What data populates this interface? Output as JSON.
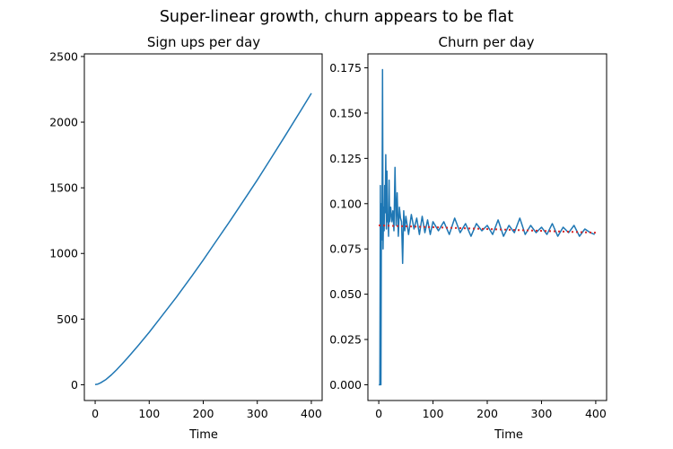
{
  "figure": {
    "suptitle": "Super-linear growth, churn appears to be flat"
  },
  "colors": {
    "series": "#1f77b4",
    "trend": "#d62728",
    "axes": "#000000"
  },
  "chart_data": [
    {
      "type": "line",
      "title": "Sign ups per day",
      "xlabel": "Time",
      "ylabel": "",
      "xlim": [
        -20,
        420
      ],
      "ylim": [
        -120,
        2520
      ],
      "xticks": [
        0,
        100,
        200,
        300,
        400
      ],
      "yticks": [
        0,
        500,
        1000,
        1500,
        2000,
        2500
      ],
      "grid": false,
      "series": [
        {
          "color": "#1f77b4",
          "x": [
            0,
            5,
            10,
            20,
            30,
            40,
            50,
            60,
            80,
            100,
            120,
            150,
            180,
            200,
            220,
            250,
            280,
            300,
            320,
            350,
            380,
            400
          ],
          "y": [
            2,
            5,
            15,
            40,
            75,
            115,
            160,
            205,
            300,
            400,
            505,
            665,
            835,
            950,
            1070,
            1250,
            1435,
            1560,
            1690,
            1885,
            2085,
            2220
          ]
        }
      ]
    },
    {
      "type": "line",
      "title": "Churn per day",
      "xlabel": "Time",
      "ylabel": "",
      "xlim": [
        -20,
        420
      ],
      "ylim": [
        -0.0087,
        0.1827
      ],
      "xticks": [
        0,
        100,
        200,
        300,
        400
      ],
      "yticks": [
        0.0,
        0.025,
        0.05,
        0.075,
        0.1,
        0.125,
        0.15,
        0.175
      ],
      "ytick_labels": [
        "0.000",
        "0.025",
        "0.050",
        "0.075",
        "0.100",
        "0.125",
        "0.150",
        "0.175"
      ],
      "grid": false,
      "series": [
        {
          "color": "#1f77b4",
          "x": [
            0,
            2,
            3,
            4,
            5,
            6,
            7,
            8,
            9,
            10,
            11,
            12,
            13,
            14,
            15,
            16,
            17,
            18,
            19,
            20,
            22,
            24,
            26,
            28,
            30,
            32,
            34,
            36,
            38,
            40,
            42,
            44,
            46,
            48,
            50,
            55,
            60,
            65,
            70,
            75,
            80,
            85,
            90,
            95,
            100,
            110,
            120,
            130,
            140,
            150,
            160,
            170,
            180,
            190,
            200,
            210,
            220,
            230,
            240,
            250,
            260,
            270,
            280,
            290,
            300,
            310,
            320,
            330,
            340,
            350,
            360,
            370,
            380,
            390,
            398
          ],
          "y": [
            0.0,
            0.0,
            0.11,
            0.0,
            0.1,
            0.08,
            0.174,
            0.075,
            0.098,
            0.085,
            0.11,
            0.095,
            0.127,
            0.086,
            0.118,
            0.09,
            0.094,
            0.082,
            0.113,
            0.09,
            0.098,
            0.09,
            0.096,
            0.085,
            0.12,
            0.088,
            0.106,
            0.082,
            0.098,
            0.092,
            0.09,
            0.067,
            0.096,
            0.085,
            0.093,
            0.083,
            0.094,
            0.086,
            0.092,
            0.083,
            0.093,
            0.084,
            0.091,
            0.083,
            0.09,
            0.085,
            0.09,
            0.083,
            0.092,
            0.084,
            0.089,
            0.082,
            0.089,
            0.085,
            0.088,
            0.083,
            0.091,
            0.082,
            0.088,
            0.084,
            0.092,
            0.083,
            0.088,
            0.084,
            0.087,
            0.083,
            0.089,
            0.082,
            0.087,
            0.084,
            0.088,
            0.082,
            0.086,
            0.084,
            0.083
          ]
        },
        {
          "color": "#d62728",
          "style": "dotted",
          "x": [
            0,
            400
          ],
          "y": [
            0.088,
            0.084
          ]
        }
      ]
    }
  ]
}
